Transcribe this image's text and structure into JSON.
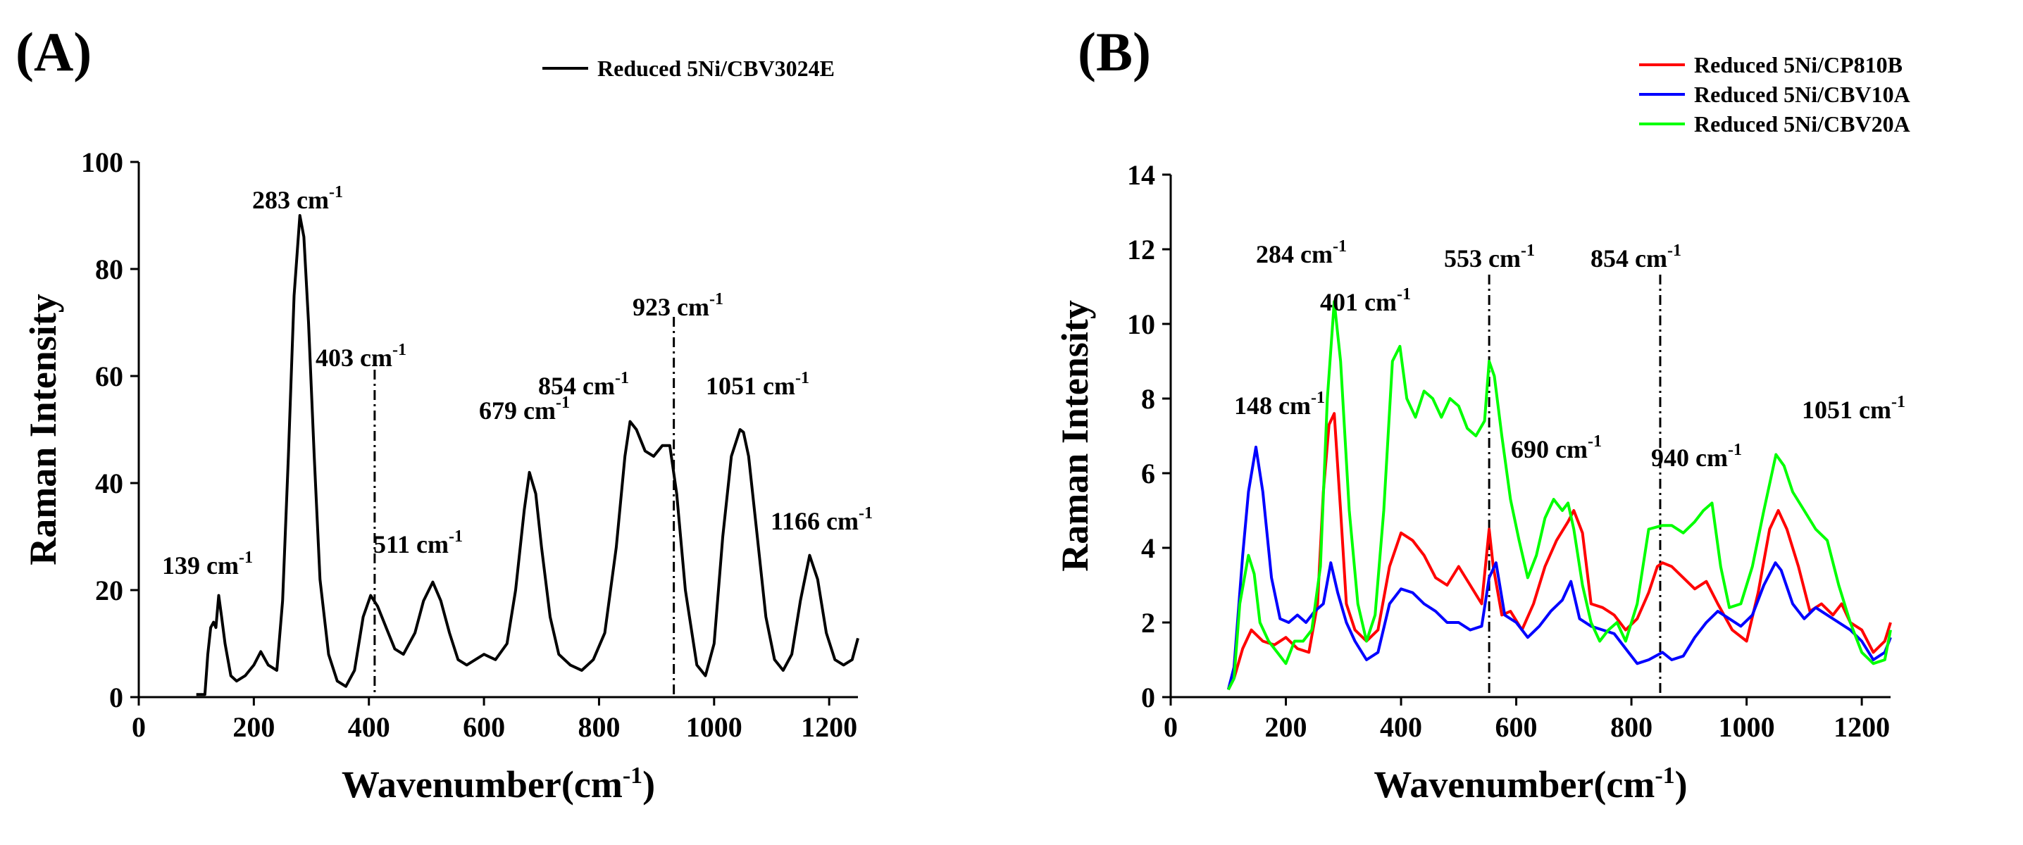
{
  "chart_data": [
    {
      "panel": "(A)",
      "type": "line",
      "xlabel": "Wavenumber(cm",
      "xlabel_sup": "-1",
      "xlabel_close": ")",
      "ylabel": "Raman Intensity",
      "xlim": [
        0,
        1250
      ],
      "ylim": [
        0,
        100
      ],
      "xticks": [
        0,
        200,
        400,
        600,
        800,
        1000,
        1200
      ],
      "yticks": [
        0,
        20,
        40,
        60,
        80,
        100
      ],
      "legend_position": "top-right",
      "series": [
        {
          "name": "Reduced 5Ni/CBV3024E",
          "color": "#000000",
          "x": [
            100,
            115,
            120,
            125,
            130,
            134,
            139,
            144,
            150,
            160,
            170,
            185,
            200,
            212,
            225,
            240,
            250,
            260,
            270,
            280,
            287,
            295,
            305,
            315,
            330,
            345,
            360,
            375,
            390,
            403,
            415,
            430,
            445,
            460,
            480,
            495,
            511,
            525,
            540,
            555,
            570,
            585,
            600,
            620,
            640,
            655,
            670,
            679,
            690,
            700,
            715,
            730,
            750,
            770,
            790,
            810,
            830,
            845,
            854,
            865,
            880,
            895,
            910,
            923,
            935,
            950,
            970,
            985,
            1000,
            1015,
            1030,
            1045,
            1051,
            1060,
            1075,
            1090,
            1105,
            1120,
            1135,
            1150,
            1166,
            1180,
            1195,
            1210,
            1225,
            1240,
            1250
          ],
          "y": [
            0.5,
            0.5,
            8,
            13,
            14,
            13,
            19,
            15,
            10,
            4,
            3,
            4,
            6,
            8.5,
            6,
            5,
            18,
            45,
            75,
            90,
            86,
            70,
            45,
            22,
            8,
            3,
            2,
            5,
            15,
            19,
            17,
            13,
            9,
            8,
            12,
            18,
            21.5,
            18,
            12,
            7,
            6,
            7,
            8,
            7,
            10,
            20,
            35,
            42,
            38,
            28,
            15,
            8,
            6,
            5,
            7,
            12,
            28,
            45,
            51.5,
            50,
            46,
            45,
            47,
            47,
            38,
            20,
            6,
            4,
            10,
            30,
            45,
            50,
            49.5,
            45,
            30,
            15,
            7,
            5,
            8,
            18,
            26.5,
            22,
            12,
            7,
            6,
            7,
            11
          ]
        }
      ],
      "annotations": [
        {
          "text": "139 cm",
          "sup": "-1"
        },
        {
          "text": "283 cm",
          "sup": "-1"
        },
        {
          "text": "403 cm",
          "sup": "-1"
        },
        {
          "text": "511 cm",
          "sup": "-1"
        },
        {
          "text": "679 cm",
          "sup": "-1"
        },
        {
          "text": "854 cm",
          "sup": "-1"
        },
        {
          "text": "923 cm",
          "sup": "-1"
        },
        {
          "text": "1051 cm",
          "sup": "-1"
        },
        {
          "text": "1166 cm",
          "sup": "-1"
        }
      ],
      "reference_lines": [
        410,
        930
      ]
    },
    {
      "panel": "(B)",
      "type": "line",
      "xlabel": "Wavenumber(cm",
      "xlabel_sup": "-1",
      "xlabel_close": ")",
      "ylabel": "Raman Intensity",
      "xlim": [
        0,
        1250
      ],
      "ylim": [
        0,
        14
      ],
      "xticks": [
        0,
        200,
        400,
        600,
        800,
        1000,
        1200
      ],
      "yticks": [
        0,
        2,
        4,
        6,
        8,
        10,
        12,
        14
      ],
      "legend_position": "top-right",
      "series": [
        {
          "name": "Reduced 5Ni/CP810B",
          "color": "#ff0000",
          "x": [
            100,
            110,
            125,
            140,
            160,
            180,
            200,
            220,
            240,
            255,
            265,
            275,
            284,
            295,
            305,
            320,
            340,
            360,
            380,
            400,
            420,
            440,
            460,
            480,
            500,
            520,
            540,
            553,
            560,
            575,
            590,
            610,
            630,
            650,
            670,
            690,
            700,
            715,
            730,
            750,
            770,
            790,
            810,
            830,
            845,
            854,
            870,
            890,
            910,
            930,
            950,
            975,
            1000,
            1020,
            1040,
            1055,
            1070,
            1090,
            1110,
            1130,
            1150,
            1165,
            1180,
            1200,
            1220,
            1240,
            1250
          ],
          "y": [
            0.2,
            0.5,
            1.3,
            1.8,
            1.5,
            1.4,
            1.6,
            1.3,
            1.2,
            2.5,
            5.5,
            7.3,
            7.6,
            5,
            2.5,
            1.8,
            1.5,
            1.8,
            3.5,
            4.4,
            4.2,
            3.8,
            3.2,
            3,
            3.5,
            3,
            2.5,
            4.5,
            3.5,
            2.2,
            2.3,
            1.8,
            2.5,
            3.5,
            4.2,
            4.7,
            5,
            4.4,
            2.5,
            2.4,
            2.2,
            1.8,
            2.1,
            2.8,
            3.5,
            3.6,
            3.5,
            3.2,
            2.9,
            3.1,
            2.5,
            1.8,
            1.5,
            2.8,
            4.5,
            5,
            4.5,
            3.5,
            2.3,
            2.5,
            2.2,
            2.5,
            2,
            1.8,
            1.2,
            1.5,
            2
          ]
        },
        {
          "name": "Reduced 5Ni/CBV10A",
          "color": "#0000ff",
          "x": [
            100,
            110,
            125,
            135,
            148,
            160,
            175,
            190,
            205,
            220,
            235,
            250,
            265,
            278,
            290,
            305,
            320,
            340,
            360,
            380,
            400,
            420,
            440,
            460,
            480,
            500,
            520,
            540,
            553,
            565,
            580,
            600,
            620,
            640,
            660,
            680,
            695,
            710,
            730,
            750,
            770,
            790,
            810,
            830,
            854,
            870,
            890,
            910,
            930,
            950,
            970,
            990,
            1010,
            1030,
            1050,
            1060,
            1080,
            1100,
            1120,
            1140,
            1160,
            1180,
            1200,
            1220,
            1240,
            1250
          ],
          "y": [
            0.2,
            0.8,
            3.8,
            5.5,
            6.7,
            5.5,
            3.2,
            2.1,
            2,
            2.2,
            2,
            2.3,
            2.5,
            3.6,
            2.8,
            2,
            1.5,
            1,
            1.2,
            2.5,
            2.9,
            2.8,
            2.5,
            2.3,
            2,
            2,
            1.8,
            1.9,
            3.2,
            3.6,
            2.2,
            2,
            1.6,
            1.9,
            2.3,
            2.6,
            3.1,
            2.1,
            1.9,
            1.8,
            1.7,
            1.3,
            0.9,
            1,
            1.2,
            1,
            1.1,
            1.6,
            2,
            2.3,
            2.1,
            1.9,
            2.2,
            3,
            3.6,
            3.4,
            2.5,
            2.1,
            2.4,
            2.2,
            2,
            1.8,
            1.5,
            1,
            1.2,
            1.6
          ]
        },
        {
          "name": "Reduced 5Ni/CBV20A",
          "color": "#00ff00",
          "x": [
            100,
            110,
            120,
            135,
            145,
            155,
            170,
            185,
            200,
            215,
            230,
            245,
            260,
            272,
            284,
            295,
            310,
            325,
            340,
            355,
            370,
            385,
            398,
            410,
            425,
            440,
            455,
            470,
            485,
            500,
            515,
            530,
            545,
            553,
            562,
            575,
            590,
            605,
            620,
            635,
            650,
            665,
            680,
            690,
            700,
            715,
            730,
            745,
            760,
            775,
            790,
            810,
            830,
            854,
            870,
            890,
            910,
            925,
            940,
            955,
            970,
            990,
            1010,
            1030,
            1051,
            1065,
            1080,
            1100,
            1120,
            1140,
            1160,
            1180,
            1200,
            1220,
            1240,
            1250
          ],
          "y": [
            0.2,
            0.5,
            2.5,
            3.8,
            3.3,
            2,
            1.5,
            1.2,
            0.9,
            1.5,
            1.5,
            1.8,
            3.5,
            8,
            10.6,
            9,
            5,
            2.5,
            1.5,
            2.2,
            5,
            9,
            9.4,
            8,
            7.5,
            8.2,
            8,
            7.5,
            8,
            7.8,
            7.2,
            7,
            7.4,
            9,
            8.6,
            7,
            5.3,
            4.2,
            3.2,
            3.8,
            4.8,
            5.3,
            5,
            5.2,
            4.5,
            3,
            2,
            1.5,
            1.8,
            2,
            1.5,
            2.5,
            4.5,
            4.6,
            4.6,
            4.4,
            4.7,
            5,
            5.2,
            3.5,
            2.4,
            2.5,
            3.5,
            5,
            6.5,
            6.2,
            5.5,
            5,
            4.5,
            4.2,
            3,
            2,
            1.2,
            0.9,
            1,
            1.8
          ]
        }
      ],
      "annotations": [
        {
          "text": "148 cm",
          "sup": "-1"
        },
        {
          "text": "284 cm",
          "sup": "-1"
        },
        {
          "text": "401 cm",
          "sup": "-1"
        },
        {
          "text": "553 cm",
          "sup": "-1"
        },
        {
          "text": "690 cm",
          "sup": "-1"
        },
        {
          "text": "854 cm",
          "sup": "-1"
        },
        {
          "text": "940 cm",
          "sup": "-1"
        },
        {
          "text": "1051 cm",
          "sup": "-1"
        }
      ],
      "reference_lines": [
        553,
        850
      ]
    }
  ]
}
